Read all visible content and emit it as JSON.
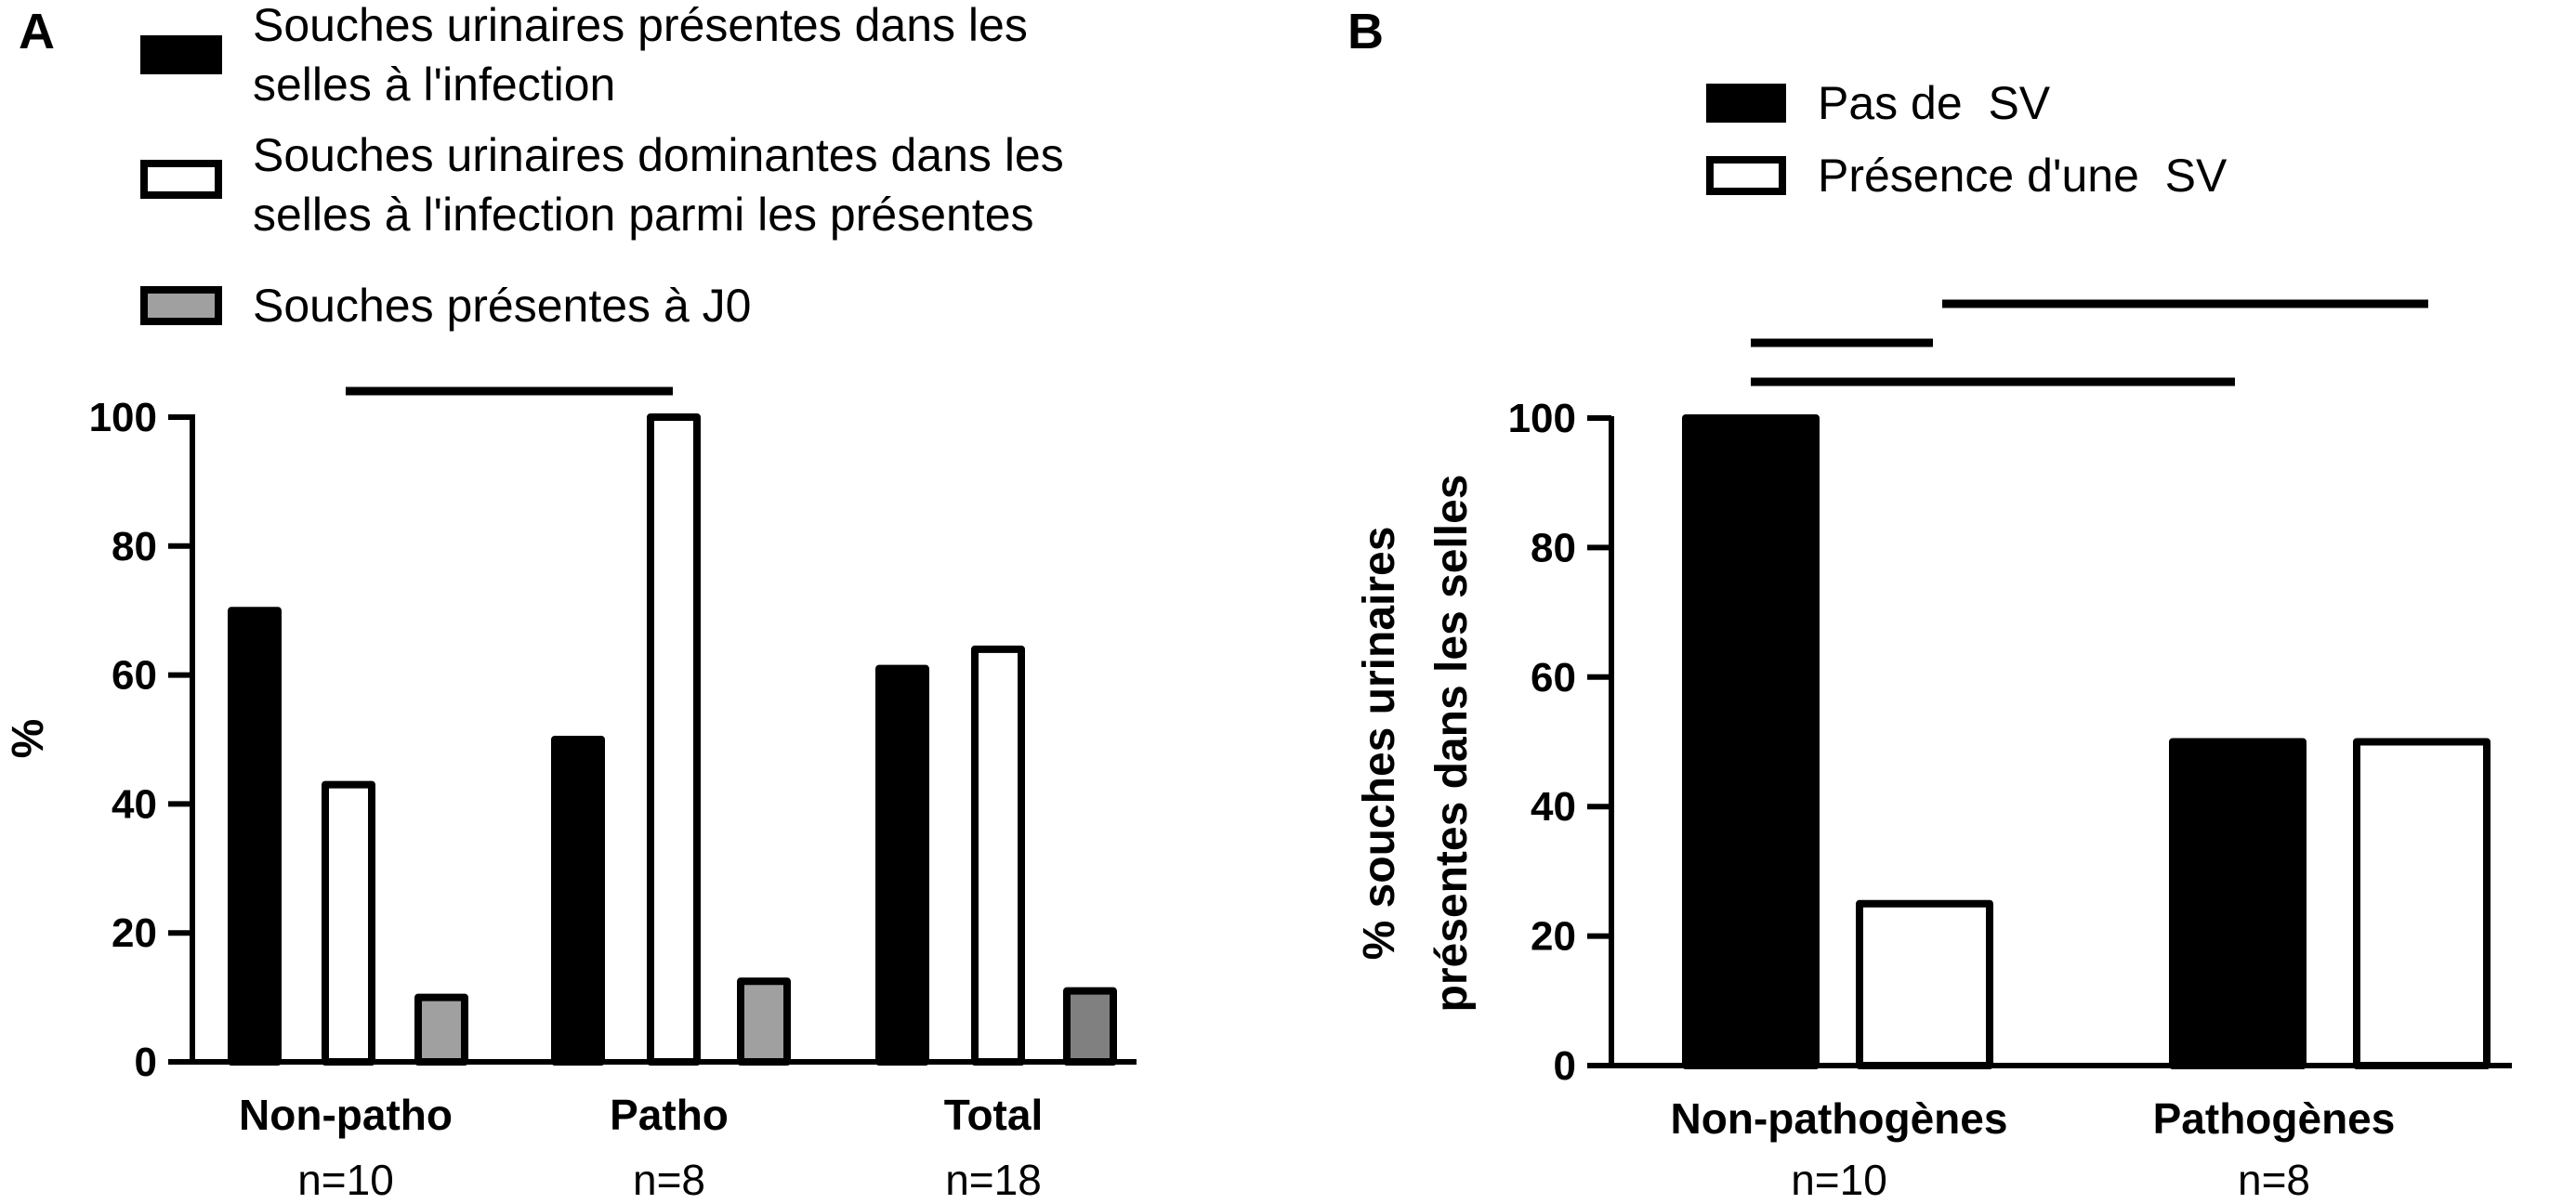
{
  "chart_data": [
    {
      "type": "bar",
      "panel_label": "A",
      "categories": [
        "Non-patho",
        "Patho",
        "Total"
      ],
      "category_counts": [
        "n=10",
        "n=8",
        "n=18"
      ],
      "ylabel": "%",
      "ylim": [
        0,
        100
      ],
      "yticks": [
        "0",
        "20",
        "40",
        "60",
        "80",
        "100"
      ],
      "series": [
        {
          "name_lines": [
            "Souches urinaires présentes dans les",
            "selles à l'infection"
          ],
          "color": "#000000",
          "values": [
            70,
            50,
            61
          ]
        },
        {
          "name_lines": [
            "Souches urinaires dominantes dans les",
            "selles à l'infection parmi les présentes"
          ],
          "color": "#ffffff",
          "values": [
            43,
            100,
            64
          ]
        },
        {
          "name_lines": [
            "Souches présentes à J0"
          ],
          "color": "#a0a0a0",
          "values": [
            10,
            12.5,
            11
          ]
        }
      ],
      "legend_placement": "top",
      "grid": false
    },
    {
      "type": "bar",
      "panel_label": "B",
      "categories": [
        "Non-pathogènes",
        "Pathogènes"
      ],
      "category_counts": [
        "n=10",
        "n=8"
      ],
      "ylabel_lines": [
        "% souches urinaires",
        "présentes dans les selles"
      ],
      "ylim": [
        0,
        100
      ],
      "yticks": [
        "0",
        "20",
        "40",
        "60",
        "80",
        "100"
      ],
      "series": [
        {
          "name": "Pas de  SV",
          "color": "#000000",
          "values": [
            100,
            50
          ]
        },
        {
          "name": "Présence d'une  SV",
          "color": "#ffffff",
          "values": [
            25,
            50
          ]
        }
      ],
      "legend_placement": "top",
      "grid": false
    }
  ]
}
